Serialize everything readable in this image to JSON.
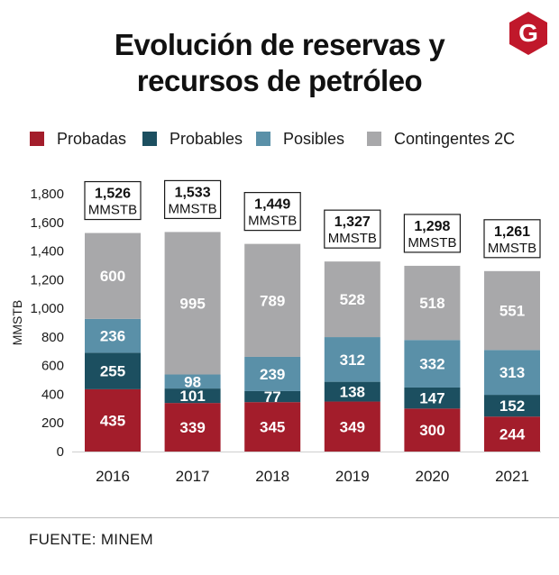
{
  "title_lines": [
    "Evolución de reservas y",
    "recursos de petróleo"
  ],
  "logo": {
    "icon": "g-hexagon-logo",
    "letter": "G",
    "color": "#c0182b"
  },
  "legend": [
    {
      "label": "Probadas",
      "color": "#a31d2b"
    },
    {
      "label": "Probables",
      "color": "#1c4f60"
    },
    {
      "label": "Posibles",
      "color": "#5a90a8"
    },
    {
      "label": "Contingentes 2C",
      "color": "#a8a8aa"
    }
  ],
  "source": "FUENTE: MINEM",
  "chart_data": {
    "type": "bar",
    "stacked": true,
    "categories": [
      "2016",
      "2017",
      "2018",
      "2019",
      "2020",
      "2021"
    ],
    "series": [
      {
        "name": "Probadas",
        "color": "#a31d2b",
        "values": [
          435,
          339,
          345,
          349,
          300,
          244
        ]
      },
      {
        "name": "Probables",
        "color": "#1c4f60",
        "values": [
          255,
          101,
          77,
          138,
          147,
          152
        ]
      },
      {
        "name": "Posibles",
        "color": "#5a90a8",
        "values": [
          236,
          98,
          239,
          312,
          332,
          313
        ]
      },
      {
        "name": "Contingentes 2C",
        "color": "#a8a8aa",
        "values": [
          600,
          995,
          789,
          528,
          518,
          551
        ]
      }
    ],
    "totals": [
      "1,526",
      "1,533",
      "1,449",
      "1,327",
      "1,298",
      "1,261"
    ],
    "total_unit": "MMSTB",
    "ylabel": "MMSTB",
    "xlabel": "",
    "ylim": [
      0,
      1800
    ],
    "yticks": [
      0,
      200,
      400,
      600,
      800,
      1000,
      1200,
      1400,
      1600,
      1800
    ],
    "ytick_labels": [
      "0",
      "200",
      "400",
      "600",
      "800",
      "1,000",
      "1,200",
      "1,400",
      "1,600",
      "1,800"
    ],
    "grid": false,
    "legend_position": "top"
  }
}
